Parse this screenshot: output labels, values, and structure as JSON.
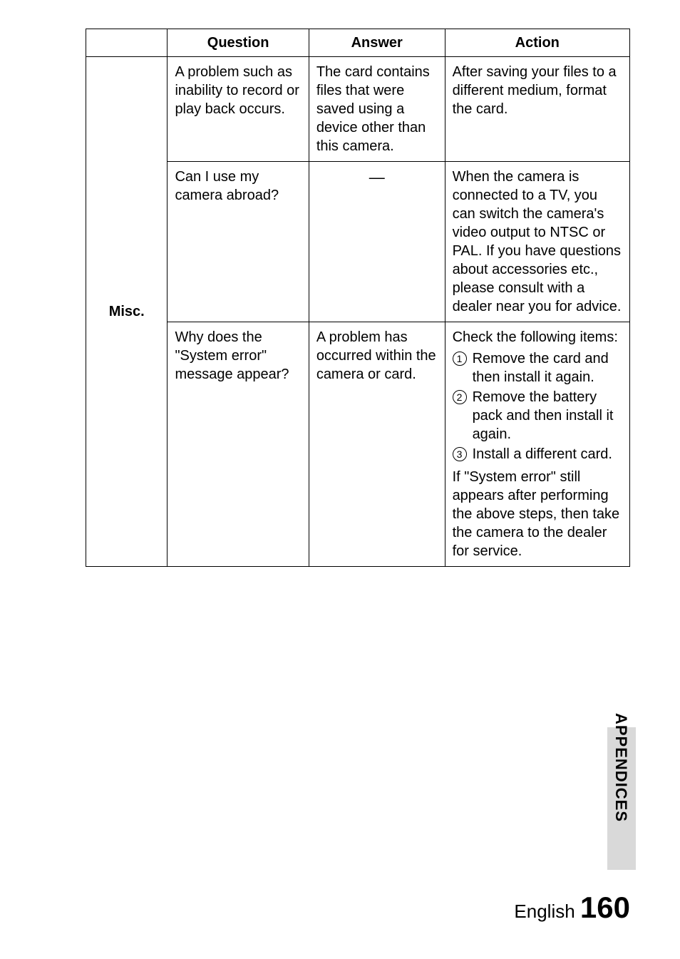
{
  "headers": {
    "col0": "",
    "col1": "Question",
    "col2": "Answer",
    "col3": "Action"
  },
  "category_label": "Misc.",
  "rows": [
    {
      "question": "A problem such as inability to record or play back occurs.",
      "answer": "The card contains files that were saved using a device other than this camera.",
      "action": "After saving your files to a different medium, format the card."
    },
    {
      "question": "Can I use my camera abroad?",
      "answer_dash": "—",
      "action": "When the camera is connected to a TV, you can switch the camera's video output to NTSC or PAL. If you have questions about accessories etc., please consult with a dealer near you for advice."
    },
    {
      "question": "Why does the \"System error\" message appear?",
      "answer": "A problem has occurred within the camera or card.",
      "action_intro": "Check the following items:",
      "action_items": [
        "Remove the card and then install it again.",
        "Remove the battery pack and then install it again.",
        "Install a different card."
      ],
      "action_outro": "If \"System error\" still appears after performing the above steps, then take the camera to the dealer for service."
    }
  ],
  "side_label": "APPENDICES",
  "footer": {
    "language": "English",
    "page": "160"
  }
}
